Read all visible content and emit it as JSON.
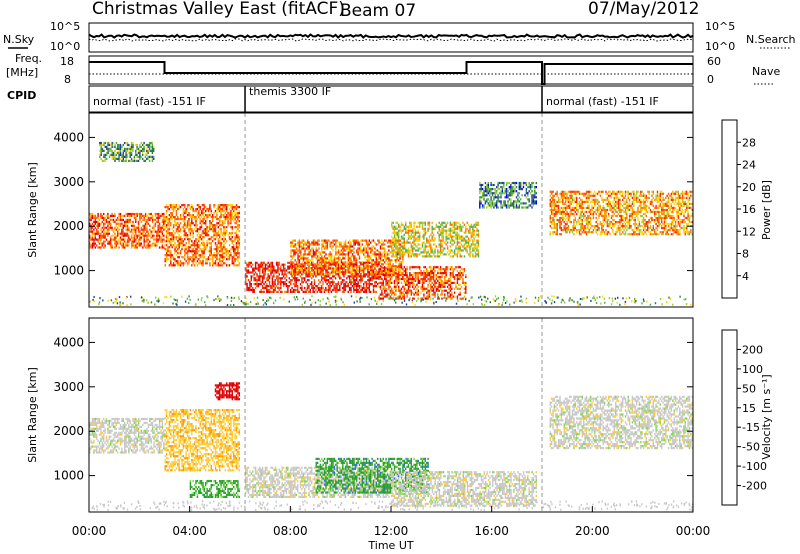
{
  "header": {
    "title": "Christmas Valley East (fitACF)",
    "beam": "Beam 07",
    "date": "07/May/2012"
  },
  "aux_panels": {
    "nsky_label": "N.Sky",
    "nsearch_label": "N.Search",
    "noise_ticks_left": [
      "10^5",
      "10^0"
    ],
    "noise_ticks_right": [
      "10^5",
      "10^0"
    ],
    "freq_label_1": "Freq.",
    "freq_label_2": "[MHz]",
    "freq_ticks": [
      "18",
      "8"
    ],
    "nave_label": "Nave",
    "nave_ticks": [
      "60",
      "0"
    ],
    "cpid_label": "CPID",
    "cpid_segments": [
      {
        "label": "normal (fast) -151 IF",
        "start_hour": 0.0,
        "end_hour": 6.2
      },
      {
        "label": "themis 3300 IF",
        "start_hour": 6.2,
        "end_hour": 18.0
      },
      {
        "label": "normal (fast) -151 IF",
        "start_hour": 18.0,
        "end_hour": 24.0
      }
    ]
  },
  "colorbars": {
    "power": {
      "label": "Power [dB]",
      "ticks": [
        "28",
        "24",
        "20",
        "16",
        "12",
        "8",
        "4"
      ],
      "colors": [
        "#0000ff",
        "#20409e",
        "#2e7d32",
        "#4caf50",
        "#9acd32",
        "#ffd700",
        "#ffa500",
        "#ff6a00",
        "#ff2a00",
        "#e00000"
      ]
    },
    "velocity": {
      "label": "Velocity [m s⁻¹]",
      "ticks": [
        "200",
        "100",
        "50",
        "15",
        "-15",
        "-50",
        "-100",
        "-200"
      ],
      "colors": [
        "#1f3fbf",
        "#2f6fdf",
        "#2aa02a",
        "#7fd84a",
        "#c8c8c8",
        "#c8c8c8",
        "#ffcc33",
        "#ff9900",
        "#ff5500",
        "#dd0000"
      ]
    }
  },
  "chart_data": [
    {
      "type": "heatmap",
      "panel": "power",
      "ylabel": "Slant Range [km]",
      "xlabel": "",
      "y_ticks": [
        "1000",
        "2000",
        "3000",
        "4000"
      ],
      "ylim": [
        180,
        4550
      ],
      "xlim_hours": [
        0,
        24
      ],
      "regions": [
        {
          "t0": 0.0,
          "t1": 3.0,
          "r0": 1500,
          "r1": 2300,
          "value_db": 24
        },
        {
          "t0": 0.4,
          "t1": 2.6,
          "r0": 3450,
          "r1": 3900,
          "value_db": 10
        },
        {
          "t0": 3.0,
          "t1": 6.0,
          "r0": 1100,
          "r1": 2500,
          "value_db": 22
        },
        {
          "t0": 6.2,
          "t1": 11.5,
          "r0": 500,
          "r1": 1200,
          "value_db": 28
        },
        {
          "t0": 8.0,
          "t1": 12.5,
          "r0": 900,
          "r1": 1700,
          "value_db": 22
        },
        {
          "t0": 11.5,
          "t1": 15.0,
          "r0": 350,
          "r1": 1100,
          "value_db": 24
        },
        {
          "t0": 12.0,
          "t1": 15.5,
          "r0": 1300,
          "r1": 2100,
          "value_db": 16
        },
        {
          "t0": 18.3,
          "t1": 24.0,
          "r0": 1800,
          "r1": 2800,
          "value_db": 20
        },
        {
          "t0": 15.5,
          "t1": 17.8,
          "r0": 2400,
          "r1": 3000,
          "value_db": 8
        }
      ]
    },
    {
      "type": "heatmap",
      "panel": "velocity",
      "ylabel": "Slant Range [km]",
      "xlabel": "Time UT",
      "x_ticks": [
        "00:00",
        "04:00",
        "08:00",
        "12:00",
        "16:00",
        "20:00",
        "00:00"
      ],
      "y_ticks": [
        "1000",
        "2000",
        "3000",
        "4000"
      ],
      "ylim": [
        180,
        4550
      ],
      "xlim_hours": [
        0,
        24
      ],
      "regions": [
        {
          "t0": 0.0,
          "t1": 3.0,
          "r0": 1500,
          "r1": 2300,
          "value_ms": 0
        },
        {
          "t0": 3.0,
          "t1": 6.0,
          "r0": 1100,
          "r1": 2500,
          "value_ms": -40
        },
        {
          "t0": 5.0,
          "t1": 6.0,
          "r0": 2700,
          "r1": 3100,
          "value_ms": -200
        },
        {
          "t0": 4.0,
          "t1": 6.0,
          "r0": 500,
          "r1": 900,
          "value_ms": 40
        },
        {
          "t0": 6.2,
          "t1": 12.0,
          "r0": 500,
          "r1": 1200,
          "value_ms": 0
        },
        {
          "t0": 9.0,
          "t1": 13.5,
          "r0": 600,
          "r1": 1400,
          "value_ms": 45
        },
        {
          "t0": 12.0,
          "t1": 17.8,
          "r0": 300,
          "r1": 1100,
          "value_ms": 0
        },
        {
          "t0": 18.3,
          "t1": 24.0,
          "r0": 1600,
          "r1": 2800,
          "value_ms": 0
        }
      ]
    }
  ]
}
